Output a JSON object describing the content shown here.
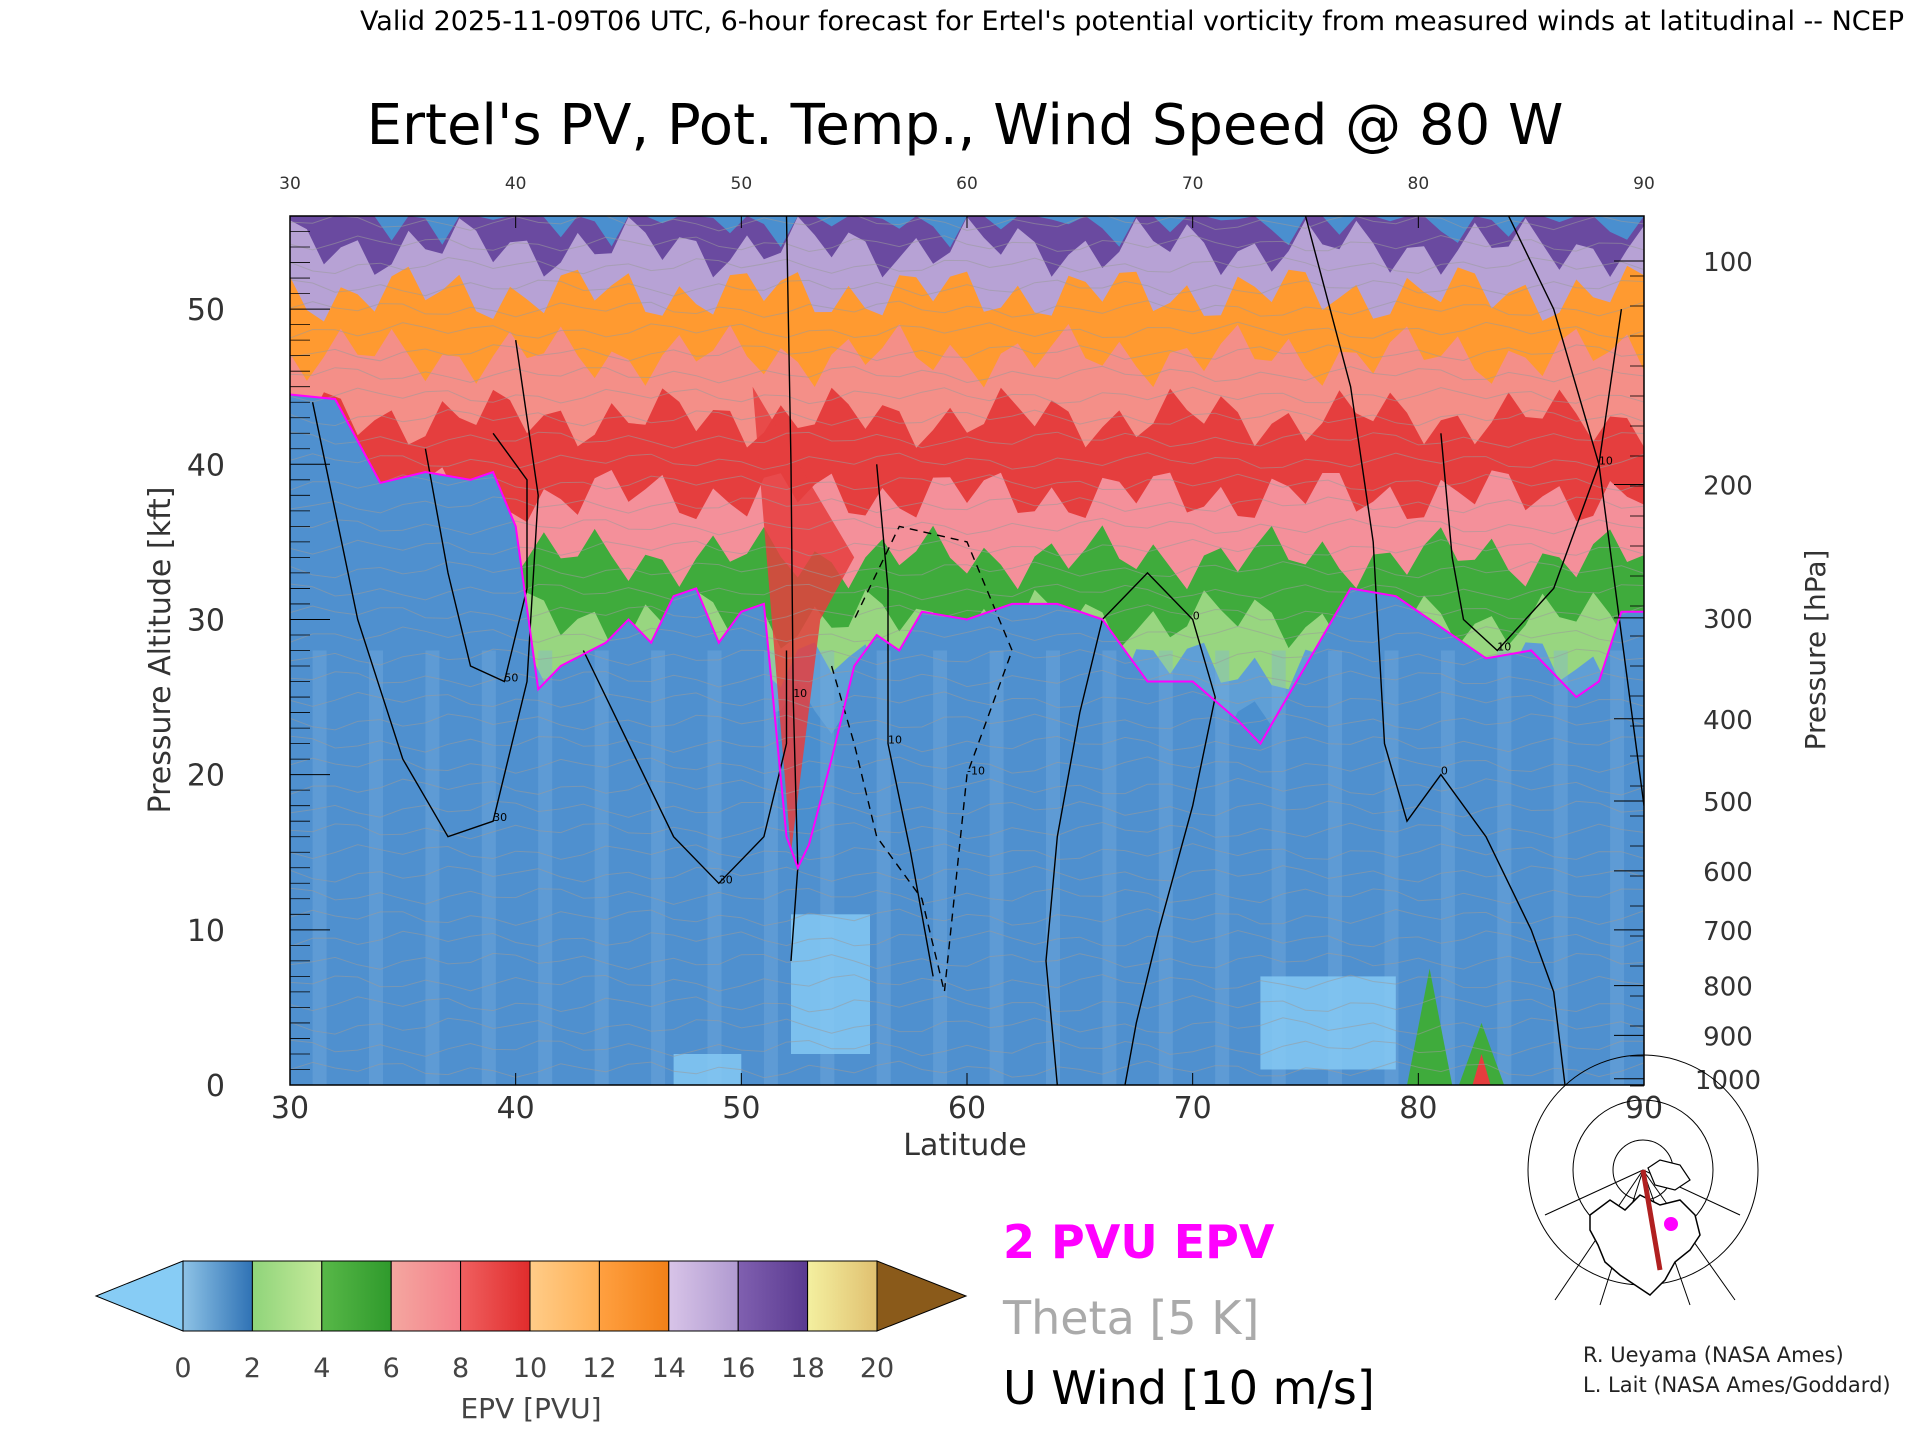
{
  "header": {
    "valid_line": "Valid 2025-11-09T06 UTC, 6-hour forecast for Ertel's potential vorticity from measured winds at latitudinal -- NCEP"
  },
  "chart_data": {
    "type": "heatmap",
    "title": "Ertel's PV, Pot. Temp., Wind Speed @ 80 W",
    "xlabel": "Latitude",
    "ylabel": "Pressure Altitude [kft]",
    "y2label": "Pressure [hPa]",
    "xlim": [
      30,
      90
    ],
    "ylim": [
      0,
      56
    ],
    "x_ticks": [
      "30",
      "40",
      "50",
      "60",
      "70",
      "80",
      "90"
    ],
    "top_x_ticks": [
      "30",
      "40",
      "50",
      "60",
      "70",
      "80",
      "90"
    ],
    "y_ticks": [
      "0",
      "10",
      "20",
      "30",
      "40",
      "50"
    ],
    "pressure_ticks": [
      {
        "label": "100",
        "kft": 53.1
      },
      {
        "label": "200",
        "kft": 38.7
      },
      {
        "label": "300",
        "kft": 30.1
      },
      {
        "label": "400",
        "kft": 23.6
      },
      {
        "label": "500",
        "kft": 18.3
      },
      {
        "label": "600",
        "kft": 13.8
      },
      {
        "label": "700",
        "kft": 10.0
      },
      {
        "label": "800",
        "kft": 6.4
      },
      {
        "label": "900",
        "kft": 3.2
      },
      {
        "label": "1000",
        "kft": 0.4
      }
    ],
    "colorbar": {
      "label": "EPV [PVU]",
      "ticks": [
        "0",
        "2",
        "4",
        "6",
        "8",
        "10",
        "12",
        "14",
        "16",
        "18",
        "20"
      ],
      "under_color": "#87ccf5",
      "over_color": "#8a5a1a",
      "segments": [
        {
          "from": 0,
          "to": 2,
          "colors": [
            "#8ec3e6",
            "#2f72b5"
          ]
        },
        {
          "from": 2,
          "to": 4,
          "colors": [
            "#8fd47a",
            "#c6ea9a"
          ]
        },
        {
          "from": 4,
          "to": 6,
          "colors": [
            "#58b848",
            "#2f9a2c"
          ]
        },
        {
          "from": 6,
          "to": 8,
          "colors": [
            "#f4a7a0",
            "#f4808a"
          ]
        },
        {
          "from": 8,
          "to": 10,
          "colors": [
            "#f06060",
            "#e02c2c"
          ]
        },
        {
          "from": 10,
          "to": 12,
          "colors": [
            "#ffcc88",
            "#ffb055"
          ]
        },
        {
          "from": 12,
          "to": 14,
          "colors": [
            "#ffa040",
            "#f28018"
          ]
        },
        {
          "from": 14,
          "to": 16,
          "colors": [
            "#d8c4e8",
            "#b09ad0"
          ]
        },
        {
          "from": 16,
          "to": 18,
          "colors": [
            "#8060b0",
            "#5a3a90"
          ]
        },
        {
          "from": 18,
          "to": 20,
          "colors": [
            "#f4f0a0",
            "#e0c070"
          ]
        }
      ]
    },
    "layers": [
      {
        "top_kft": 24,
        "color": "#4a8fcf"
      },
      {
        "top_kft": 27,
        "color": "#5f9fd6"
      },
      {
        "top_kft": 30,
        "color": "#98d680"
      },
      {
        "top_kft": 34,
        "color": "#3fab3c"
      },
      {
        "top_kft": 38,
        "color": "#f4909a"
      },
      {
        "top_kft": 43,
        "color": "#e53e3e"
      },
      {
        "top_kft": 47,
        "color": "#f48f88"
      },
      {
        "top_kft": 51,
        "color": "#ff9a30"
      },
      {
        "top_kft": 54,
        "color": "#b7a2d5"
      },
      {
        "top_kft": 56,
        "color": "#6a4aa0"
      }
    ],
    "tropopause_2pvu": [
      [
        30,
        44.5
      ],
      [
        32,
        44.2
      ],
      [
        34,
        38.8
      ],
      [
        36,
        39.5
      ],
      [
        38,
        39.0
      ],
      [
        39,
        39.5
      ],
      [
        40,
        36.0
      ],
      [
        41,
        25.5
      ],
      [
        42,
        27.0
      ],
      [
        44,
        28.5
      ],
      [
        45,
        30.0
      ],
      [
        46,
        28.5
      ],
      [
        47,
        31.5
      ],
      [
        48,
        32.0
      ],
      [
        49,
        28.5
      ],
      [
        50,
        30.5
      ],
      [
        51,
        31.0
      ],
      [
        52,
        16.0
      ],
      [
        52.5,
        14.0
      ],
      [
        53,
        15.5
      ],
      [
        54,
        21.0
      ],
      [
        55,
        27.0
      ],
      [
        56,
        29.0
      ],
      [
        57,
        28.0
      ],
      [
        58,
        30.5
      ],
      [
        60,
        30.0
      ],
      [
        62,
        31.0
      ],
      [
        64,
        31.0
      ],
      [
        66,
        30.0
      ],
      [
        68,
        26.0
      ],
      [
        70,
        26.0
      ],
      [
        72,
        23.5
      ],
      [
        73,
        22.0
      ],
      [
        74,
        24.5
      ],
      [
        75,
        27.0
      ],
      [
        77,
        32.0
      ],
      [
        79,
        31.5
      ],
      [
        81,
        29.5
      ],
      [
        83,
        27.5
      ],
      [
        85,
        28.0
      ],
      [
        87,
        25.0
      ],
      [
        88,
        26.0
      ],
      [
        89,
        30.5
      ],
      [
        90,
        30.5
      ]
    ],
    "wind_contours": [
      {
        "label": "30",
        "points": [
          [
            31,
            44
          ],
          [
            33,
            30
          ],
          [
            35,
            21
          ],
          [
            37,
            16
          ],
          [
            39,
            17
          ],
          [
            40.5,
            26
          ],
          [
            41,
            38
          ],
          [
            40,
            48
          ]
        ]
      },
      {
        "label": "50",
        "points": [
          [
            36,
            41
          ],
          [
            37,
            33
          ],
          [
            38,
            27
          ],
          [
            39.5,
            26
          ],
          [
            40.5,
            32
          ],
          [
            40.5,
            39
          ],
          [
            39,
            42
          ]
        ]
      },
      {
        "label": "30",
        "points": [
          [
            43,
            28
          ],
          [
            45,
            22
          ],
          [
            47,
            16
          ],
          [
            49,
            13
          ],
          [
            51,
            16
          ],
          [
            52,
            22
          ],
          [
            52,
            28
          ]
        ]
      },
      {
        "label": "10",
        "points": [
          [
            52,
            56
          ],
          [
            52.2,
            40
          ],
          [
            52.3,
            25
          ],
          [
            52.5,
            14
          ],
          [
            52.2,
            8
          ]
        ]
      },
      {
        "label": "10",
        "points": [
          [
            56,
            40
          ],
          [
            56.5,
            32
          ],
          [
            56.5,
            22
          ],
          [
            57.5,
            15
          ],
          [
            58.5,
            7
          ]
        ]
      },
      {
        "label": "-10",
        "points": [
          [
            54,
            27
          ],
          [
            55,
            22
          ],
          [
            56,
            16
          ],
          [
            58,
            12
          ],
          [
            59,
            6
          ],
          [
            60,
            20
          ],
          [
            62,
            28
          ],
          [
            60,
            35
          ],
          [
            57,
            36
          ],
          [
            55,
            30
          ]
        ]
      },
      {
        "label": "0",
        "points": [
          [
            64,
            0
          ],
          [
            63.5,
            8
          ],
          [
            64,
            16
          ],
          [
            65,
            24
          ],
          [
            66,
            30
          ],
          [
            68,
            33
          ],
          [
            70,
            30
          ],
          [
            71,
            25
          ],
          [
            70,
            18
          ],
          [
            68.5,
            10
          ],
          [
            67.5,
            4
          ],
          [
            67,
            0
          ]
        ]
      },
      {
        "label": "0",
        "points": [
          [
            75,
            56
          ],
          [
            77,
            45
          ],
          [
            78,
            35
          ],
          [
            78.5,
            22
          ],
          [
            79.5,
            17
          ],
          [
            81,
            20
          ],
          [
            83,
            16
          ],
          [
            85,
            10
          ],
          [
            86,
            6
          ],
          [
            86.5,
            0
          ]
        ]
      },
      {
        "label": "10",
        "points": [
          [
            81,
            42
          ],
          [
            81.5,
            34
          ],
          [
            82,
            30
          ],
          [
            83.5,
            28
          ],
          [
            86,
            32
          ],
          [
            88,
            40
          ],
          [
            89,
            50
          ]
        ]
      },
      {
        "label": "10",
        "points": [
          [
            84,
            56
          ],
          [
            86,
            50
          ],
          [
            88,
            40
          ],
          [
            90,
            18
          ]
        ]
      }
    ],
    "grid": false
  },
  "legend": {
    "tropopause": {
      "label": "2 PVU EPV",
      "color": "#ff00ff"
    },
    "theta": {
      "label": "Theta [5 K]",
      "color": "#aaaaaa"
    },
    "wind": {
      "label": "U Wind [10 m/s]",
      "color": "#000000"
    }
  },
  "credits": {
    "line1": "R. Ueyama (NASA Ames)",
    "line2": "L. Lait (NASA Ames/Goddard)"
  },
  "inset_map": {
    "marker_color": "#ff00ff",
    "section_color": "#b02020"
  }
}
